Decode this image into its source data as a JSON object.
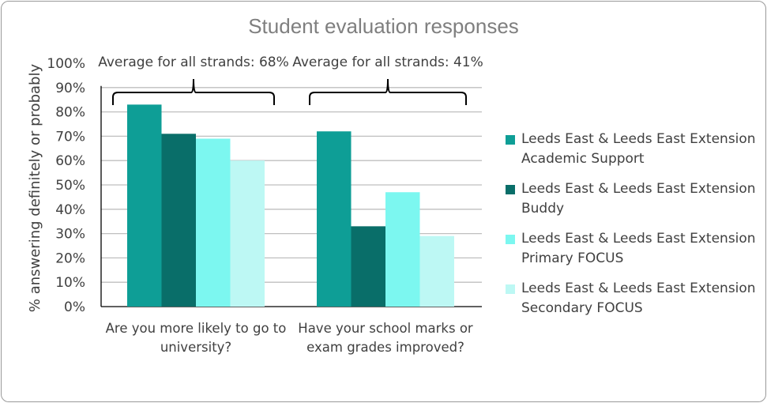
{
  "chart_data": {
    "type": "bar",
    "title": "Student evaluation responses",
    "xlabel": "",
    "ylabel": "% answering definitely or probably",
    "ylim": [
      0,
      100
    ],
    "yticks": [
      "0%",
      "10%",
      "20%",
      "30%",
      "40%",
      "50%",
      "60%",
      "70%",
      "80%",
      "90%",
      "100%"
    ],
    "grid": true,
    "legend_position": "right",
    "categories": [
      [
        "Are you more likely to go to",
        "university?"
      ],
      [
        "Have your school marks or",
        "exam grades improved?"
      ]
    ],
    "series": [
      {
        "name": "Leeds East & Leeds East Extension Academic Support",
        "line1": "Leeds East & Leeds East Extension",
        "line2": "Academic Support",
        "color": "#0e9e96",
        "values": [
          83,
          72
        ]
      },
      {
        "name": "Leeds East & Leeds East Extension Buddy",
        "line1": "Leeds East & Leeds East Extension",
        "line2": "Buddy",
        "color": "#096e69",
        "values": [
          71,
          33
        ]
      },
      {
        "name": "Leeds East & Leeds East Extension Primary FOCUS",
        "line1": "Leeds East & Leeds East Extension",
        "line2": "Primary FOCUS",
        "color": "#7cf7f0",
        "values": [
          69,
          47
        ]
      },
      {
        "name": "Leeds East & Leeds East Extension Secondary FOCUS",
        "line1": "Leeds East & Leeds East Extension",
        "line2": "Secondary FOCUS",
        "color": "#bdf8f4",
        "values": [
          60,
          29
        ]
      }
    ],
    "annotations": [
      "Average for all strands: 68%",
      "Average for all strands: 41%"
    ]
  }
}
